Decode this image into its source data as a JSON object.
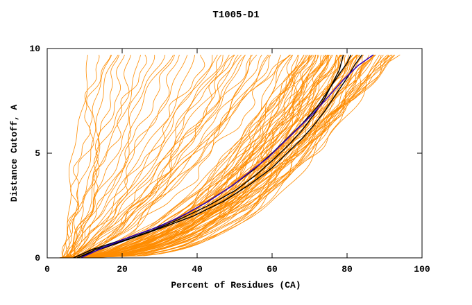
{
  "chart_data": {
    "type": "line",
    "title": "T1005-D1",
    "xlabel": "Percent of Residues (CA)",
    "ylabel": "Distance Cutoff, A",
    "xlim": [
      0,
      100
    ],
    "ylim": [
      0,
      10
    ],
    "xticks": [
      0,
      20,
      40,
      60,
      80,
      100
    ],
    "yticks": [
      0,
      5,
      10
    ],
    "grid": false,
    "legend": "none",
    "y_top": 9.7,
    "colors": {
      "background_line": "#FF8C00",
      "highlight_black": "#000000",
      "highlight_blue": "#3300BB",
      "axis": "#000000",
      "background": "#FFFFFF"
    },
    "highlight_series": [
      {
        "name": "model-black-1",
        "color": "black",
        "points": [
          [
            8,
            0
          ],
          [
            13,
            0.4
          ],
          [
            20,
            0.8
          ],
          [
            28,
            1.3
          ],
          [
            36,
            1.9
          ],
          [
            43,
            2.5
          ],
          [
            50,
            3.2
          ],
          [
            56,
            4.0
          ],
          [
            61,
            4.8
          ],
          [
            65,
            5.5
          ],
          [
            68,
            6.1
          ],
          [
            71,
            6.8
          ],
          [
            74,
            7.6
          ],
          [
            76,
            8.3
          ],
          [
            78,
            9.0
          ],
          [
            79,
            9.7
          ]
        ]
      },
      {
        "name": "model-black-2",
        "color": "black",
        "points": [
          [
            8,
            0
          ],
          [
            14,
            0.4
          ],
          [
            22,
            0.9
          ],
          [
            30,
            1.4
          ],
          [
            39,
            2.0
          ],
          [
            47,
            2.7
          ],
          [
            54,
            3.5
          ],
          [
            60,
            4.3
          ],
          [
            64,
            5.0
          ],
          [
            68,
            5.7
          ],
          [
            71,
            6.3
          ],
          [
            74,
            7.0
          ],
          [
            77,
            7.8
          ],
          [
            80,
            8.6
          ],
          [
            82,
            9.2
          ],
          [
            84,
            9.7
          ]
        ]
      },
      {
        "name": "model-black-3",
        "color": "black",
        "points": [
          [
            7,
            0
          ],
          [
            12,
            0.4
          ],
          [
            19,
            0.8
          ],
          [
            27,
            1.3
          ],
          [
            35,
            1.9
          ],
          [
            42,
            2.6
          ],
          [
            49,
            3.4
          ],
          [
            55,
            4.2
          ],
          [
            60,
            5.0
          ],
          [
            64,
            5.7
          ],
          [
            68,
            6.4
          ],
          [
            72,
            7.2
          ],
          [
            75,
            8.0
          ],
          [
            78,
            8.8
          ],
          [
            80,
            9.3
          ],
          [
            81,
            9.7
          ]
        ]
      },
      {
        "name": "model-blue",
        "color": "blue",
        "points": [
          [
            9,
            0
          ],
          [
            15,
            0.5
          ],
          [
            22,
            1.0
          ],
          [
            30,
            1.5
          ],
          [
            37,
            2.1
          ],
          [
            43,
            2.7
          ],
          [
            49,
            3.4
          ],
          [
            54,
            4.1
          ],
          [
            59,
            4.8
          ],
          [
            63,
            5.5
          ],
          [
            67,
            6.2
          ],
          [
            71,
            6.9
          ],
          [
            75,
            7.7
          ],
          [
            79,
            8.5
          ],
          [
            83,
            9.2
          ],
          [
            87,
            9.7
          ]
        ]
      }
    ],
    "background_series": {
      "description": "Orange model curves approximated as x(y)=x0+(xtop-x0)*(y/9.7)^p, params=[x0,xtop,p]",
      "params": [
        [
          4,
          11,
          1.1
        ],
        [
          5,
          13,
          1.0
        ],
        [
          4,
          15,
          0.95
        ],
        [
          6,
          16,
          1.05
        ],
        [
          5,
          18,
          0.9
        ],
        [
          7,
          19,
          1.0
        ],
        [
          4,
          21,
          0.85
        ],
        [
          6,
          23,
          0.95
        ],
        [
          5,
          25,
          0.9
        ],
        [
          7,
          26,
          1.1
        ],
        [
          4,
          28,
          0.8
        ],
        [
          6,
          30,
          0.9
        ],
        [
          5,
          32,
          0.85
        ],
        [
          7,
          34,
          0.95
        ],
        [
          6,
          36,
          0.8
        ],
        [
          5,
          38,
          0.9
        ],
        [
          7,
          40,
          0.85
        ],
        [
          6,
          42,
          0.8
        ],
        [
          5,
          44,
          0.75
        ],
        [
          6,
          46,
          0.7
        ],
        [
          4,
          48,
          0.8
        ],
        [
          6,
          50,
          0.65
        ],
        [
          7,
          52,
          0.75
        ],
        [
          5,
          54,
          0.7
        ],
        [
          7,
          56,
          0.6
        ],
        [
          4,
          58,
          0.72
        ],
        [
          6,
          60,
          0.66
        ],
        [
          7,
          62,
          0.7
        ],
        [
          5,
          45,
          0.85
        ],
        [
          6,
          49,
          0.6
        ],
        [
          7,
          53,
          0.68
        ],
        [
          5,
          57,
          0.63
        ],
        [
          6,
          61,
          0.74
        ],
        [
          4,
          47,
          0.66
        ],
        [
          7,
          55,
          0.78
        ],
        [
          5,
          59,
          0.62
        ],
        [
          6,
          51,
          0.8
        ],
        [
          6,
          63,
          0.6
        ],
        [
          4,
          64,
          0.45
        ],
        [
          5,
          65,
          0.4
        ],
        [
          3,
          66,
          0.5
        ],
        [
          6,
          66,
          0.35
        ],
        [
          4,
          67,
          0.42
        ],
        [
          5,
          68,
          0.48
        ],
        [
          3,
          68,
          0.38
        ],
        [
          6,
          69,
          0.44
        ],
        [
          4,
          70,
          0.36
        ],
        [
          5,
          70,
          0.5
        ],
        [
          3,
          71,
          0.4
        ],
        [
          6,
          71,
          0.46
        ],
        [
          4,
          72,
          0.34
        ],
        [
          5,
          72,
          0.44
        ],
        [
          3,
          73,
          0.5
        ],
        [
          6,
          73,
          0.38
        ],
        [
          4,
          74,
          0.42
        ],
        [
          5,
          74,
          0.48
        ],
        [
          3,
          75,
          0.36
        ],
        [
          6,
          75,
          0.44
        ],
        [
          4,
          76,
          0.4
        ],
        [
          5,
          76,
          0.5
        ],
        [
          3,
          77,
          0.34
        ],
        [
          6,
          77,
          0.46
        ],
        [
          4,
          78,
          0.38
        ],
        [
          5,
          78,
          0.44
        ],
        [
          3,
          79,
          0.5
        ],
        [
          6,
          79,
          0.36
        ],
        [
          4,
          80,
          0.42
        ],
        [
          5,
          80,
          0.48
        ],
        [
          3,
          81,
          0.38
        ],
        [
          6,
          81,
          0.44
        ],
        [
          4,
          82,
          0.34
        ],
        [
          5,
          82,
          0.5
        ],
        [
          3,
          83,
          0.4
        ],
        [
          6,
          83,
          0.46
        ],
        [
          4,
          84,
          0.36
        ],
        [
          5,
          84,
          0.44
        ],
        [
          3,
          85,
          0.5
        ],
        [
          6,
          85,
          0.38
        ],
        [
          4,
          86,
          0.42
        ],
        [
          5,
          86,
          0.48
        ],
        [
          3,
          87,
          0.36
        ],
        [
          6,
          87,
          0.44
        ],
        [
          4,
          88,
          0.4
        ],
        [
          5,
          88,
          0.5
        ],
        [
          3,
          89,
          0.34
        ],
        [
          6,
          89,
          0.46
        ],
        [
          4,
          90,
          0.38
        ],
        [
          5,
          90,
          0.44
        ],
        [
          7,
          68,
          0.32
        ],
        [
          8,
          72,
          0.33
        ],
        [
          7,
          76,
          0.31
        ],
        [
          8,
          80,
          0.33
        ],
        [
          7,
          84,
          0.32
        ],
        [
          8,
          78,
          0.3
        ],
        [
          7,
          74,
          0.33
        ],
        [
          8,
          82,
          0.31
        ],
        [
          7,
          86,
          0.32
        ],
        [
          8,
          70,
          0.3
        ],
        [
          4,
          69,
          0.55
        ],
        [
          5,
          73,
          0.52
        ],
        [
          3,
          77,
          0.55
        ],
        [
          6,
          81,
          0.52
        ],
        [
          4,
          85,
          0.55
        ],
        [
          5,
          67,
          0.52
        ],
        [
          3,
          71,
          0.55
        ],
        [
          6,
          75,
          0.52
        ],
        [
          4,
          79,
          0.55
        ],
        [
          5,
          83,
          0.52
        ],
        [
          5,
          91,
          0.5
        ],
        [
          6,
          92,
          0.55
        ],
        [
          4,
          93,
          0.6
        ],
        [
          7,
          91,
          0.45
        ],
        [
          5,
          92,
          0.5
        ],
        [
          6,
          93,
          0.65
        ],
        [
          4,
          91,
          0.55
        ],
        [
          7,
          92,
          0.6
        ]
      ]
    }
  }
}
